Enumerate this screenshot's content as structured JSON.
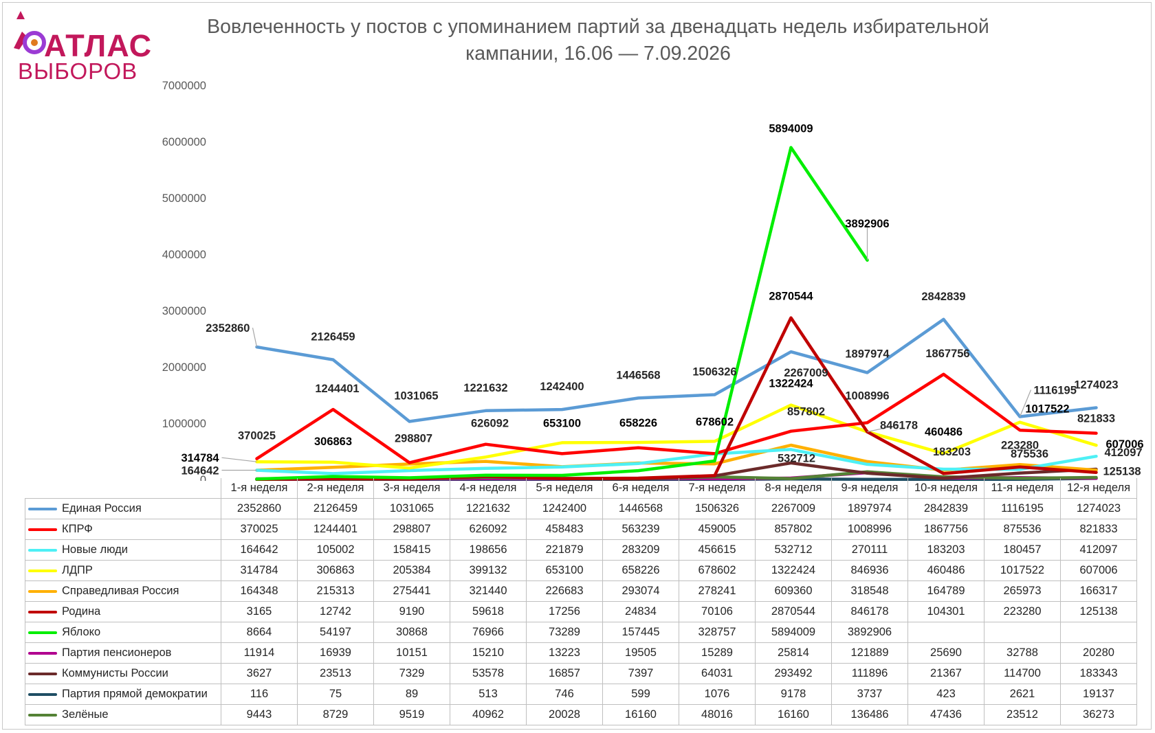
{
  "logo": {
    "top": "АТЛАС",
    "bottom": "ВЫБОРОВ",
    "icon": "atlas-ring-icon",
    "color": "#c2185b"
  },
  "chart_data": {
    "type": "line",
    "title": "Вовлеченность у постов с упоминанием партий за двенадцать недель избирательной кампании, 16.06 — 7.09.2026",
    "categories": [
      "1-я неделя",
      "2-я неделя",
      "3-я неделя",
      "4-я неделя",
      "5-я неделя",
      "6-я неделя",
      "7-я неделя",
      "8-я неделя",
      "9-я неделя",
      "10-я неделя",
      "11-я неделя",
      "12-я неделя"
    ],
    "ylim": [
      0,
      7000000
    ],
    "yticks": [
      0,
      1000000,
      2000000,
      3000000,
      4000000,
      5000000,
      6000000,
      7000000
    ],
    "grid": false,
    "legend": "data-table",
    "series": [
      {
        "name": "Единая Россия",
        "color": "#5b9bd5",
        "values": [
          2352860,
          2126459,
          1031065,
          1221632,
          1242400,
          1446568,
          1506326,
          2267009,
          1897974,
          2842839,
          1116195,
          1274023
        ]
      },
      {
        "name": "КПРФ",
        "color": "#ff0000",
        "values": [
          370025,
          1244401,
          298807,
          626092,
          458483,
          563239,
          459005,
          857802,
          1008996,
          1867756,
          875536,
          821833
        ]
      },
      {
        "name": "Новые люди",
        "color": "#4ef0f5",
        "values": [
          164642,
          105002,
          158415,
          198656,
          221879,
          283209,
          456615,
          532712,
          270111,
          183203,
          180457,
          412097
        ]
      },
      {
        "name": "ЛДПР",
        "color": "#ffff00",
        "values": [
          314784,
          306863,
          205384,
          399132,
          653100,
          658226,
          678602,
          1322424,
          846936,
          460486,
          1017522,
          607006
        ]
      },
      {
        "name": "Справедливая Россия",
        "color": "#ffb000",
        "values": [
          164348,
          215313,
          275441,
          321440,
          226683,
          293074,
          278241,
          609360,
          318548,
          164789,
          265973,
          166317
        ]
      },
      {
        "name": "Родина",
        "color": "#c00000",
        "values": [
          3165,
          12742,
          9190,
          59618,
          17256,
          24834,
          70106,
          2870544,
          846178,
          104301,
          223280,
          125138
        ]
      },
      {
        "name": "Яблоко",
        "color": "#00ee00",
        "values": [
          8664,
          54197,
          30868,
          76966,
          73289,
          157445,
          328757,
          5894009,
          3892906,
          null,
          null,
          null
        ]
      },
      {
        "name": "Партия пенсионеров",
        "color": "#b0008f",
        "values": [
          11914,
          16939,
          10151,
          15210,
          13223,
          19505,
          15289,
          25814,
          121889,
          25690,
          32788,
          20280
        ]
      },
      {
        "name": "Коммунисты России",
        "color": "#6b2a2a",
        "values": [
          3627,
          23513,
          7329,
          53578,
          16857,
          7397,
          64031,
          293492,
          111896,
          21367,
          114700,
          183343
        ]
      },
      {
        "name": "Партия прямой демократии",
        "color": "#1f4e64",
        "values": [
          116,
          75,
          89,
          513,
          746,
          599,
          1076,
          9178,
          3737,
          423,
          2621,
          19137
        ]
      },
      {
        "name": "Зелёные",
        "color": "#548235",
        "values": [
          9443,
          8729,
          9519,
          40962,
          20028,
          16160,
          48016,
          16160,
          136486,
          47436,
          23512,
          36273
        ]
      }
    ],
    "annotations": [
      "2352860",
      "2126459",
      "1031065",
      "1221632",
      "1242400",
      "1446568",
      "1506326",
      "2267009",
      "1897974",
      "2842839",
      "1116195",
      "1274023",
      "370025",
      "1244401",
      "298807",
      "626092",
      "653100",
      "658226",
      "678602",
      "857802",
      "1008996",
      "1867756",
      "875536",
      "821833",
      "314784",
      "306863",
      "1322424",
      "846178",
      "460486",
      "1017522",
      "607006",
      "164642",
      "532712",
      "183203",
      "412097",
      "2870544",
      "223280",
      "125138",
      "5894009",
      "3892906"
    ]
  }
}
